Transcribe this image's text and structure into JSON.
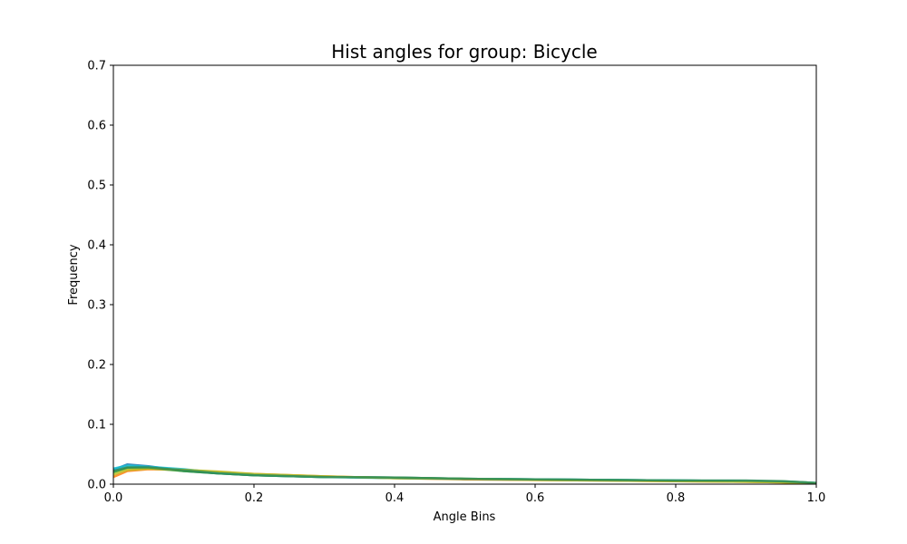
{
  "chart_data": {
    "type": "line",
    "title": "Hist angles for group: Bicycle",
    "xlabel": "Angle Bins",
    "ylabel": "Frequency",
    "xlim": [
      0,
      1
    ],
    "ylim": [
      0,
      0.7
    ],
    "xticks": [
      "0.0",
      "0.2",
      "0.4",
      "0.6",
      "0.8",
      "1.0"
    ],
    "yticks": [
      "0.0",
      "0.1",
      "0.2",
      "0.3",
      "0.4",
      "0.5",
      "0.6",
      "0.7"
    ],
    "grid": false,
    "legend": false,
    "x": [
      0,
      0.02,
      0.05,
      0.1,
      0.15,
      0.2,
      0.3,
      0.4,
      0.5,
      0.6,
      0.7,
      0.8,
      0.9,
      0.95,
      1.0
    ],
    "series": [
      {
        "color": "#1f77b4",
        "values": [
          0.024,
          0.033,
          0.03,
          0.022,
          0.018,
          0.015,
          0.012,
          0.011,
          0.009,
          0.008,
          0.007,
          0.006,
          0.005,
          0.004,
          0.002
        ]
      },
      {
        "color": "#ff7f0e",
        "values": [
          0.012,
          0.022,
          0.025,
          0.024,
          0.02,
          0.017,
          0.013,
          0.01,
          0.008,
          0.007,
          0.006,
          0.005,
          0.004,
          0.003,
          0.001
        ]
      },
      {
        "color": "#2ca02c",
        "values": [
          0.02,
          0.027,
          0.027,
          0.022,
          0.018,
          0.015,
          0.012,
          0.011,
          0.009,
          0.008,
          0.007,
          0.006,
          0.005,
          0.005,
          0.002
        ]
      },
      {
        "color": "#17becf",
        "values": [
          0.026,
          0.031,
          0.029,
          0.025,
          0.019,
          0.016,
          0.012,
          0.01,
          0.009,
          0.008,
          0.007,
          0.006,
          0.005,
          0.004,
          0.002
        ]
      },
      {
        "color": "#bcbd22",
        "values": [
          0.016,
          0.024,
          0.026,
          0.024,
          0.021,
          0.017,
          0.013,
          0.01,
          0.009,
          0.007,
          0.006,
          0.005,
          0.004,
          0.003,
          0.001
        ]
      },
      {
        "color": "#2e8b57",
        "values": [
          0.022,
          0.028,
          0.028,
          0.023,
          0.018,
          0.015,
          0.012,
          0.011,
          0.009,
          0.008,
          0.007,
          0.006,
          0.006,
          0.005,
          0.002
        ]
      }
    ]
  }
}
